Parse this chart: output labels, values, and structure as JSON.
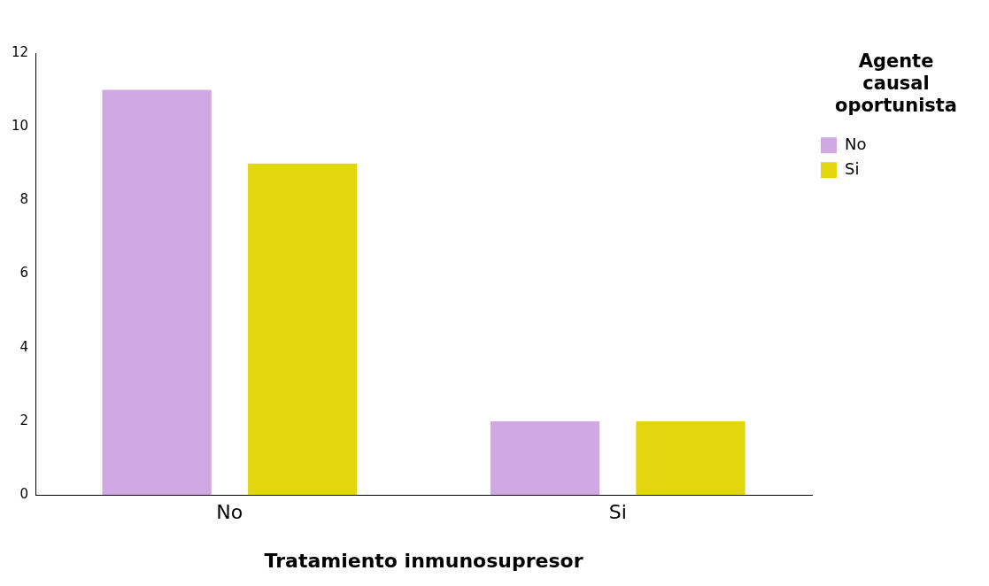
{
  "chart_data": {
    "type": "bar",
    "xlabel": "Tratamiento inmunosupresor",
    "legend_title": "Agente causal oportunista",
    "categories": [
      "No",
      "Si"
    ],
    "series": [
      {
        "name": "No",
        "color": "#d0a8e2",
        "values": [
          11,
          2
        ]
      },
      {
        "name": "Si",
        "color": "#e2d60e",
        "values": [
          9,
          2
        ]
      }
    ],
    "ylim": [
      0,
      12
    ],
    "yticks": [
      0,
      2,
      4,
      6,
      8,
      10,
      12
    ],
    "grid": false,
    "legend": "top right"
  }
}
